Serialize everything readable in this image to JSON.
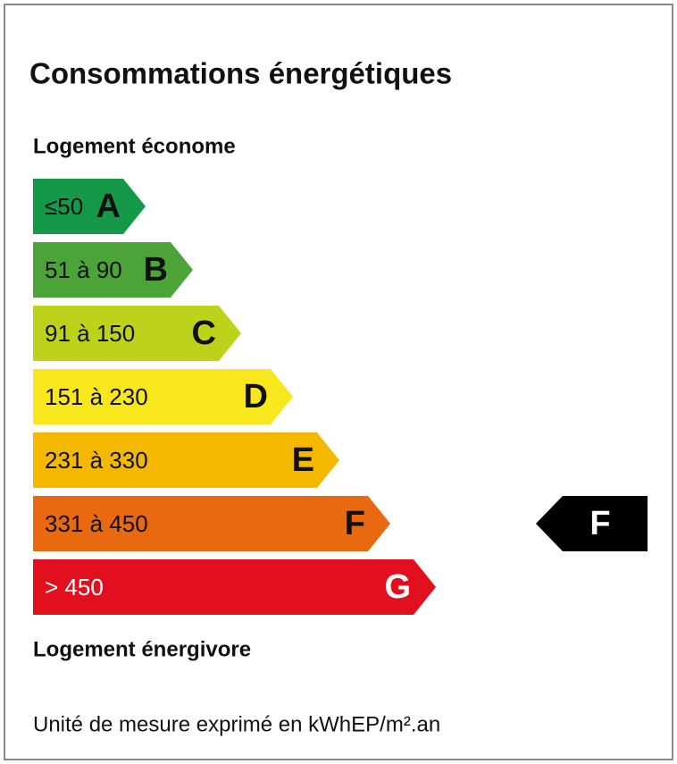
{
  "title": "Consommations énergétiques",
  "top_label": "Logement économe",
  "bands": [
    {
      "range": "≤50",
      "letter": "A",
      "color": "#16984a"
    },
    {
      "range": "51 à 90",
      "letter": "B",
      "color": "#4ca337"
    },
    {
      "range": "91 à 150",
      "letter": "C",
      "color": "#bdd21b"
    },
    {
      "range": "151 à 230",
      "letter": "D",
      "color": "#f7e71c"
    },
    {
      "range": "231 à 330",
      "letter": "E",
      "color": "#f5b800"
    },
    {
      "range": "331 à 450",
      "letter": "F",
      "color": "#e8690f"
    },
    {
      "range": "> 450",
      "letter": "G",
      "color": "#e2101e"
    }
  ],
  "bottom_label": "Logement énergivore",
  "rating": {
    "letter": "F",
    "color": "#000000"
  },
  "footer": "Unité de mesure exprimé en kWhEP/m².an"
}
